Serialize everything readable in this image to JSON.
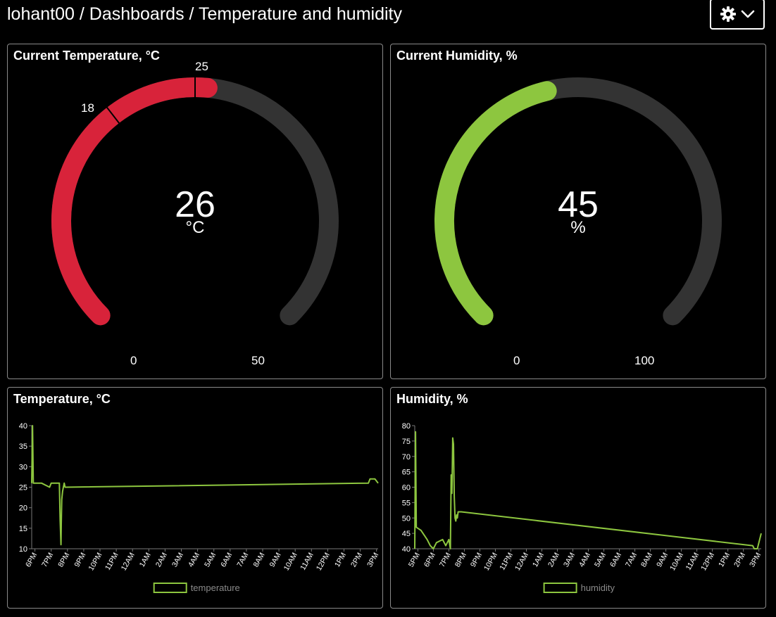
{
  "header": {
    "breadcrumb": "lohant00 / Dashboards / Temperature and humidity",
    "settings_icon": "gear-icon",
    "dropdown_icon": "chevron-down-icon"
  },
  "colors": {
    "temperature_fill": "#d8233a",
    "humidity_fill": "#8dc63f",
    "gauge_track": "#333333",
    "line": "#8dc63f"
  },
  "temp_gauge": {
    "title": "Current Temperature, °C",
    "value": 26,
    "display_value": "26",
    "unit": "°C",
    "min": 0,
    "max": 50,
    "min_label": "0",
    "max_label": "50",
    "thresholds": [
      18,
      25
    ],
    "threshold_labels": [
      "18",
      "25"
    ]
  },
  "hum_gauge": {
    "title": "Current Humidity, %",
    "value": 45,
    "display_value": "45",
    "unit": "%",
    "min": 0,
    "max": 100,
    "min_label": "0",
    "max_label": "100"
  },
  "temp_chart": {
    "title": "Temperature, °C",
    "legend": "temperature",
    "chart_data": {
      "type": "line",
      "ylim": [
        10,
        40
      ],
      "y_ticks": [
        "10",
        "15",
        "20",
        "25",
        "30",
        "35",
        "40"
      ],
      "x_ticks": [
        "6PM",
        "7PM",
        "8PM",
        "9PM",
        "10PM",
        "11PM",
        "12AM",
        "1AM",
        "2AM",
        "3AM",
        "4AM",
        "5AM",
        "6AM",
        "7AM",
        "8AM",
        "9AM",
        "10AM",
        "11AM",
        "12PM",
        "1PM",
        "2PM",
        "3PM"
      ],
      "x_range": [
        17.8,
        39.1
      ],
      "series": [
        {
          "name": "temperature",
          "x": [
            17.8,
            17.85,
            17.9,
            17.95,
            18.4,
            18.9,
            19.0,
            19.5,
            19.55,
            19.6,
            19.62,
            19.65,
            19.7,
            19.75,
            19.8,
            19.85,
            19.9,
            38.5,
            38.6,
            38.9,
            39.1
          ],
          "y": [
            26,
            40,
            26,
            26,
            26,
            25,
            26,
            26,
            17,
            11,
            16,
            22,
            24,
            25,
            26,
            25,
            25,
            26,
            27,
            27,
            26
          ]
        }
      ]
    }
  },
  "hum_chart": {
    "title": "Humidity, %",
    "legend": "humidity",
    "chart_data": {
      "type": "line",
      "ylim": [
        40,
        80
      ],
      "y_ticks": [
        "40",
        "45",
        "50",
        "55",
        "60",
        "65",
        "70",
        "75",
        "80"
      ],
      "x_ticks": [
        "5PM",
        "6PM",
        "7PM",
        "8PM",
        "9PM",
        "10PM",
        "11PM",
        "12AM",
        "1AM",
        "2AM",
        "3AM",
        "4AM",
        "5AM",
        "6AM",
        "7AM",
        "8AM",
        "9AM",
        "10AM",
        "11AM",
        "12PM",
        "1PM",
        "2PM",
        "3PM"
      ],
      "x_range": [
        16.8,
        39.15
      ],
      "series": [
        {
          "name": "humidity",
          "x": [
            16.8,
            16.85,
            16.9,
            17.2,
            17.6,
            17.8,
            18.0,
            18.2,
            18.6,
            18.8,
            19.0,
            19.1,
            19.15,
            19.2,
            19.25,
            19.3,
            19.35,
            19.4,
            19.45,
            19.5,
            19.55,
            19.6,
            19.7,
            19.8,
            38.6,
            38.7,
            38.9,
            39.15
          ],
          "y": [
            40,
            78,
            47,
            46,
            43,
            41,
            40,
            42,
            43,
            41,
            43,
            40,
            64,
            58,
            76,
            74,
            57,
            50,
            49,
            51,
            50,
            52,
            52,
            52,
            41,
            40,
            40,
            45
          ]
        }
      ]
    }
  }
}
